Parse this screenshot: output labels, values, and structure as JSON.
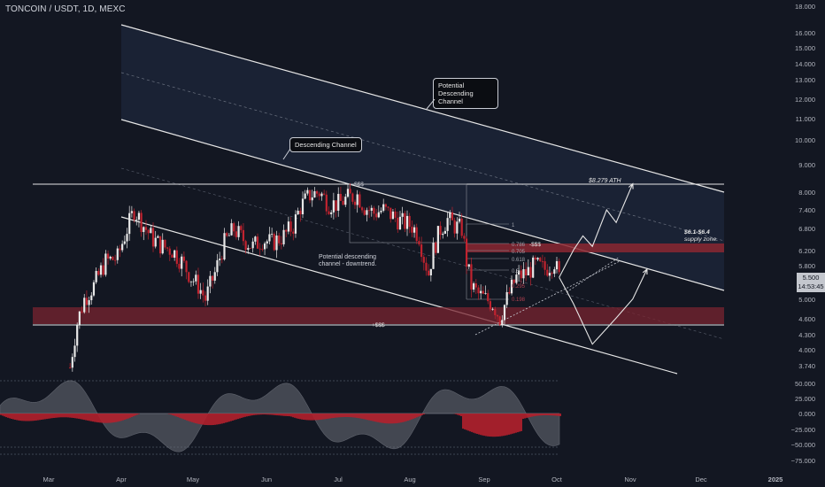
{
  "header": {
    "title": "TONCOIN / USDT, 1D, MEXC"
  },
  "last_price": {
    "value": "5.500",
    "countdown": "14:53:45"
  },
  "annotations": {
    "callout_upper": [
      "Potential",
      "Descending Channel"
    ],
    "callout_lower": [
      "Descending Channel"
    ],
    "note_mid": [
      "Potential descending",
      "channel - downtrend."
    ],
    "ath_label": "$8.279 ATH",
    "supply_label": [
      "$6.1-$6.4",
      "supply zone."
    ],
    "sss_top": "-$$$",
    "sss_mid": "-$$$",
    "sss_bottom": "+$$$",
    "fib_1": "1",
    "fib_0786": "0.786",
    "fib_0705": "0.705",
    "fib_0618": "0.618",
    "fib_05": "0.5",
    "fib_0": "0.295",
    "fib_neg": "0.198"
  },
  "chart_data": {
    "type": "candlestick",
    "x_ticks": [
      "Mar",
      "Apr",
      "May",
      "Jun",
      "Jul",
      "Aug",
      "Sep",
      "Oct",
      "Nov",
      "Dec",
      "2025"
    ],
    "y_ticks": [
      "18.000",
      "16.000",
      "15.000",
      "14.000",
      "13.000",
      "12.000",
      "11.000",
      "10.000",
      "9.000",
      "8.000",
      "7.400",
      "6.800",
      "6.200",
      "5.800",
      "5.000",
      "4.600",
      "4.300",
      "4.000",
      "3.740"
    ],
    "oscillator_ticks": [
      "50.000",
      "25.000",
      "0.000",
      "−25.000",
      "−50.000",
      "−75.000"
    ],
    "scale": "log",
    "ylim": [
      3.6,
      18.0
    ],
    "key_levels": {
      "ath": 8.279,
      "supply_zone": [
        6.1,
        6.4
      ],
      "demand_zone": [
        4.45,
        4.85
      ],
      "last_close": 5.5
    },
    "price_path": [
      [
        "Mar 10",
        3.7
      ],
      [
        "Mar 13",
        4.5
      ],
      [
        "Mar 16",
        5.0
      ],
      [
        "Mar 20",
        5.3
      ],
      [
        "Mar 25",
        5.9
      ],
      [
        "Mar 30",
        6.0
      ],
      [
        "Apr 3",
        6.8
      ],
      [
        "Apr 6",
        7.4
      ],
      [
        "Apr 10",
        6.9
      ],
      [
        "Apr 14",
        6.5
      ],
      [
        "Apr 18",
        6.3
      ],
      [
        "Apr 22",
        6.2
      ],
      [
        "Apr 26",
        5.9
      ],
      [
        "Apr 30",
        5.5
      ],
      [
        "May 3",
        5.3
      ],
      [
        "May 6",
        5.0
      ],
      [
        "May 10",
        5.6
      ],
      [
        "May 14",
        6.4
      ],
      [
        "May 18",
        6.8
      ],
      [
        "May 22",
        6.5
      ],
      [
        "May 26",
        6.3
      ],
      [
        "May 30",
        6.5
      ],
      [
        "Jun 3",
        6.4
      ],
      [
        "Jun 8",
        6.6
      ],
      [
        "Jun 12",
        6.9
      ],
      [
        "Jun 15",
        7.5
      ],
      [
        "Jun 19",
        7.9
      ],
      [
        "Jun 23",
        8.0
      ],
      [
        "Jun 27",
        7.6
      ],
      [
        "Jul 1",
        7.6
      ],
      [
        "Jul 5",
        7.8
      ],
      [
        "Jul 9",
        7.9
      ],
      [
        "Jul 12",
        7.5
      ],
      [
        "Jul 16",
        7.3
      ],
      [
        "Jul 20",
        7.4
      ],
      [
        "Jul 24",
        7.2
      ],
      [
        "Jul 28",
        7.0
      ],
      [
        "Aug 1",
        6.9
      ],
      [
        "Aug 4",
        6.6
      ],
      [
        "Aug 6",
        6.0
      ],
      [
        "Aug 8",
        5.6
      ],
      [
        "Aug 10",
        6.2
      ],
      [
        "Aug 13",
        6.8
      ],
      [
        "Aug 16",
        7.1
      ],
      [
        "Aug 19",
        6.9
      ],
      [
        "Aug 22",
        6.8
      ],
      [
        "Aug 24",
        5.9
      ],
      [
        "Aug 26",
        5.3
      ],
      [
        "Aug 29",
        5.1
      ],
      [
        "Sep 1",
        5.0
      ],
      [
        "Sep 4",
        4.9
      ],
      [
        "Sep 7",
        4.6
      ],
      [
        "Sep 10",
        5.0
      ],
      [
        "Sep 14",
        5.5
      ],
      [
        "Sep 18",
        5.6
      ],
      [
        "Sep 22",
        5.8
      ],
      [
        "Sep 26",
        5.7
      ],
      [
        "Sep 30",
        5.9
      ],
      [
        "Oct 2",
        5.5
      ]
    ],
    "projection_bull": [
      [
        "Oct 2",
        5.5
      ],
      [
        "Oct 8",
        6.2
      ],
      [
        "Oct 12",
        6.6
      ],
      [
        "Oct 16",
        6.3
      ],
      [
        "Oct 22",
        7.4
      ],
      [
        "Oct 26",
        7.0
      ],
      [
        "Nov 2",
        8.3
      ]
    ],
    "projection_bear": [
      [
        "Oct 2",
        5.5
      ],
      [
        "Oct 8",
        4.9
      ],
      [
        "Oct 16",
        4.1
      ],
      [
        "Oct 26",
        4.6
      ],
      [
        "Nov 2",
        5.0
      ],
      [
        "Nov 8",
        5.7
      ]
    ],
    "oscillator_ylim": [
      -80,
      60
    ]
  }
}
